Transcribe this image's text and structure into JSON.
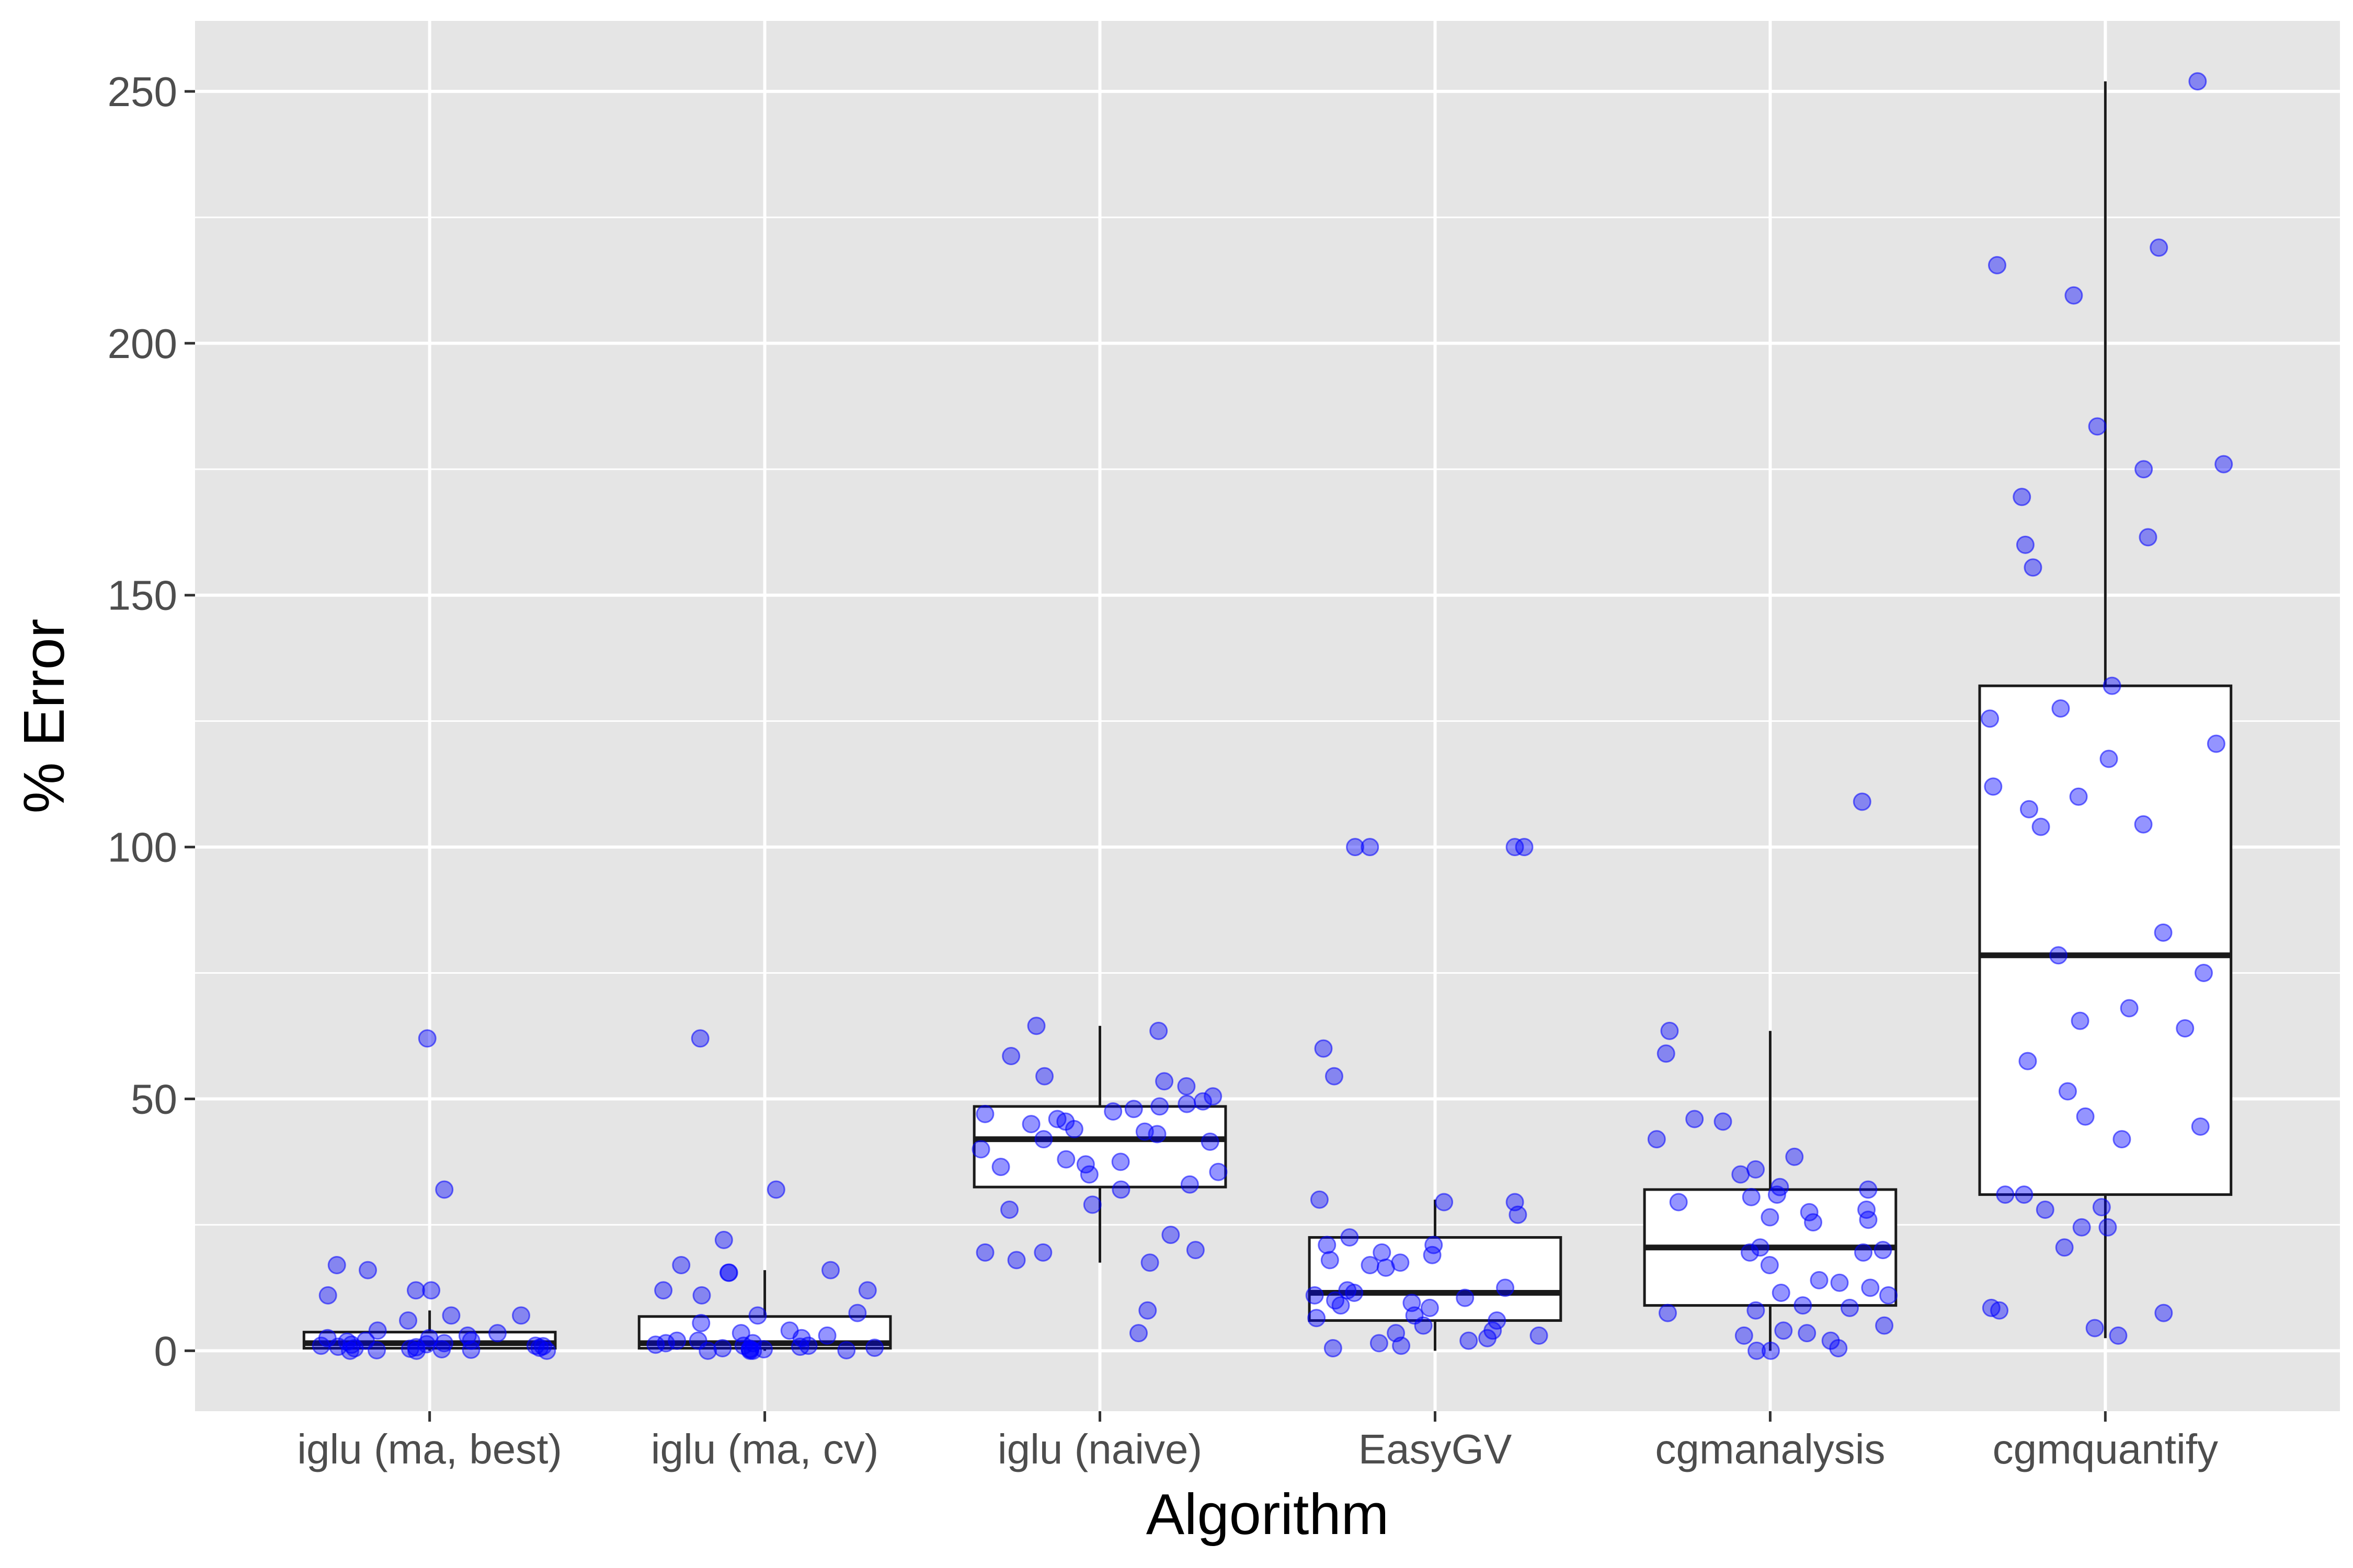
{
  "chart_data": {
    "type": "boxplot",
    "title": "",
    "xlabel": "Algorithm",
    "ylabel": "% Error",
    "ylim": [
      -12,
      264
    ],
    "yticks": [
      0,
      50,
      100,
      150,
      200,
      250
    ],
    "grid": true,
    "legend": "none",
    "colors": {
      "panel": "#e5e5e5",
      "grid": "#ffffff",
      "box_fill": "#ffffff",
      "box_line": "#1a1a1a",
      "points": "#0000ff"
    },
    "categories": [
      "iglu (ma, best)",
      "iglu (ma, cv)",
      "iglu (naive)",
      "EasyGV",
      "cgmanalysis",
      "cgmquantify"
    ],
    "boxes": [
      {
        "name": "iglu (ma, best)",
        "whisker_low": 0,
        "q1": 0.5,
        "median": 1.5,
        "q3": 3.7,
        "whisker_high": 8,
        "outliers": [
          62,
          32,
          17,
          16,
          12,
          12,
          11
        ]
      },
      {
        "name": "iglu (ma, cv)",
        "whisker_low": 0,
        "q1": 0.5,
        "median": 1.5,
        "q3": 6.8,
        "whisker_high": 16,
        "outliers": [
          62,
          32,
          22
        ]
      },
      {
        "name": "iglu (naive)",
        "whisker_low": 17.5,
        "q1": 32.5,
        "median": 42,
        "q3": 48.5,
        "whisker_high": 64.5,
        "outliers": [
          8,
          3.5
        ]
      },
      {
        "name": "EasyGV",
        "whisker_low": 0,
        "q1": 6,
        "median": 11.5,
        "q3": 22.5,
        "whisker_high": 30,
        "outliers": [
          100,
          100,
          100,
          100,
          60,
          54.5
        ]
      },
      {
        "name": "cgmanalysis",
        "whisker_low": 0,
        "q1": 9,
        "median": 20.5,
        "q3": 32,
        "whisker_high": 63.5,
        "outliers": [
          109
        ]
      },
      {
        "name": "cgmquantify",
        "whisker_low": 2.5,
        "q1": 31,
        "median": 78.5,
        "q3": 132,
        "whisker_high": 252,
        "outliers": []
      }
    ],
    "points": [
      [
        62,
        32,
        17,
        16,
        12,
        12,
        11,
        7,
        7,
        6,
        4,
        3.5,
        3,
        2.5,
        2.5,
        2,
        2,
        1.8,
        1.5,
        1.3,
        1.2,
        1,
        1,
        0.9,
        0.8,
        0.7,
        0.6,
        0.5,
        0.4,
        0.3,
        0.2,
        0.1,
        0,
        0,
        0
      ],
      [
        62,
        32,
        22,
        17,
        16,
        15.5,
        15.5,
        12,
        12,
        11,
        7.5,
        7,
        5.5,
        4,
        3.5,
        3,
        2.5,
        2,
        2,
        1.5,
        1.5,
        1.2,
        1,
        1,
        0.8,
        0.6,
        0.5,
        0.4,
        0.3,
        0.2,
        0.1,
        0,
        0,
        0
      ],
      [
        64.5,
        63.5,
        58.5,
        54.5,
        53.5,
        52.5,
        50.5,
        49.5,
        49,
        48.5,
        48,
        47.5,
        47,
        46,
        45.5,
        45,
        44,
        43.5,
        43,
        42,
        41.5,
        40,
        38,
        37.5,
        37,
        36.5,
        35.5,
        35,
        33,
        32,
        29,
        28,
        23,
        20,
        19.5,
        19.5,
        18,
        17.5,
        8,
        3.5
      ],
      [
        100,
        100,
        100,
        100,
        60,
        54.5,
        30,
        29.5,
        29.5,
        27,
        22.5,
        21,
        21,
        19.5,
        19,
        18,
        17.5,
        17,
        16.5,
        12.5,
        12,
        11.5,
        11,
        10.5,
        10,
        9.5,
        9,
        8.5,
        7,
        6.5,
        6,
        5,
        4,
        3.5,
        3,
        2.5,
        2,
        1.5,
        1,
        0.5
      ],
      [
        109,
        63.5,
        59,
        46,
        45.5,
        42,
        38.5,
        36,
        35,
        32.5,
        32,
        31,
        30.5,
        29.5,
        28,
        27.5,
        26.5,
        26,
        25.5,
        20.5,
        20,
        19.5,
        19.5,
        17,
        14,
        13.5,
        12.5,
        11.5,
        11,
        9,
        8.5,
        8,
        7.5,
        5,
        4,
        3.5,
        3,
        2,
        0.5,
        0,
        0
      ],
      [
        252,
        219,
        215.5,
        209.5,
        183.5,
        176,
        175,
        169.5,
        161.5,
        160,
        155.5,
        132,
        127.5,
        125.5,
        120.5,
        117.5,
        112,
        110,
        107.5,
        104.5,
        104,
        83,
        78.5,
        75,
        68,
        65.5,
        64,
        57.5,
        51.5,
        46.5,
        44.5,
        42,
        31,
        31,
        28.5,
        28,
        24.5,
        24.5,
        20.5,
        8.5,
        8,
        7.5,
        4.5,
        3
      ]
    ]
  }
}
